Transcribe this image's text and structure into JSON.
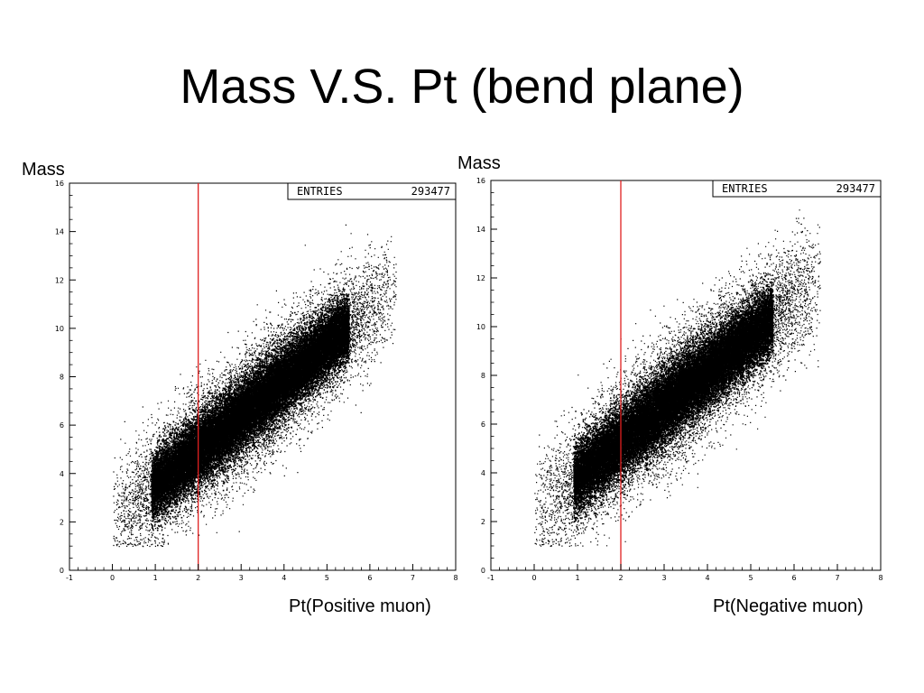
{
  "slide": {
    "title": "Mass V.S. Pt (bend plane)"
  },
  "colors": {
    "points": "#000000",
    "cut_line": "#e02020",
    "frame": "#000000"
  },
  "chart_data": [
    {
      "type": "scatter",
      "ylabel": "Mass",
      "xlabel": "Pt(Positive muon)",
      "xlim": [
        -1,
        8
      ],
      "ylim": [
        0,
        16
      ],
      "xticks": [
        "-1",
        "0",
        "1",
        "2",
        "3",
        "4",
        "5",
        "6",
        "7",
        "8"
      ],
      "yticks": [
        "0",
        "2",
        "4",
        "6",
        "8",
        "10",
        "12",
        "14",
        "16"
      ],
      "stats": {
        "label": "ENTRIES",
        "value": "293477"
      },
      "cut_x": 2,
      "distribution": {
        "x_range": [
          0,
          6.6
        ],
        "y_min": 1.0,
        "y_max": 15.0,
        "slope": 1.45,
        "intercept": 2.1,
        "spread": 1.15
      }
    },
    {
      "type": "scatter",
      "ylabel": "Mass",
      "xlabel": "Pt(Negative muon)",
      "xlim": [
        -1,
        8
      ],
      "ylim": [
        0,
        16
      ],
      "xticks": [
        "-1",
        "0",
        "1",
        "2",
        "3",
        "4",
        "5",
        "6",
        "7",
        "8"
      ],
      "yticks": [
        "0",
        "2",
        "4",
        "6",
        "8",
        "10",
        "12",
        "14",
        "16"
      ],
      "stats": {
        "label": "ENTRIES",
        "value": "293477"
      },
      "cut_x": 2,
      "distribution": {
        "x_range": [
          0,
          6.6
        ],
        "y_min": 1.0,
        "y_max": 15.0,
        "slope": 1.45,
        "intercept": 2.4,
        "spread": 1.2
      }
    }
  ]
}
